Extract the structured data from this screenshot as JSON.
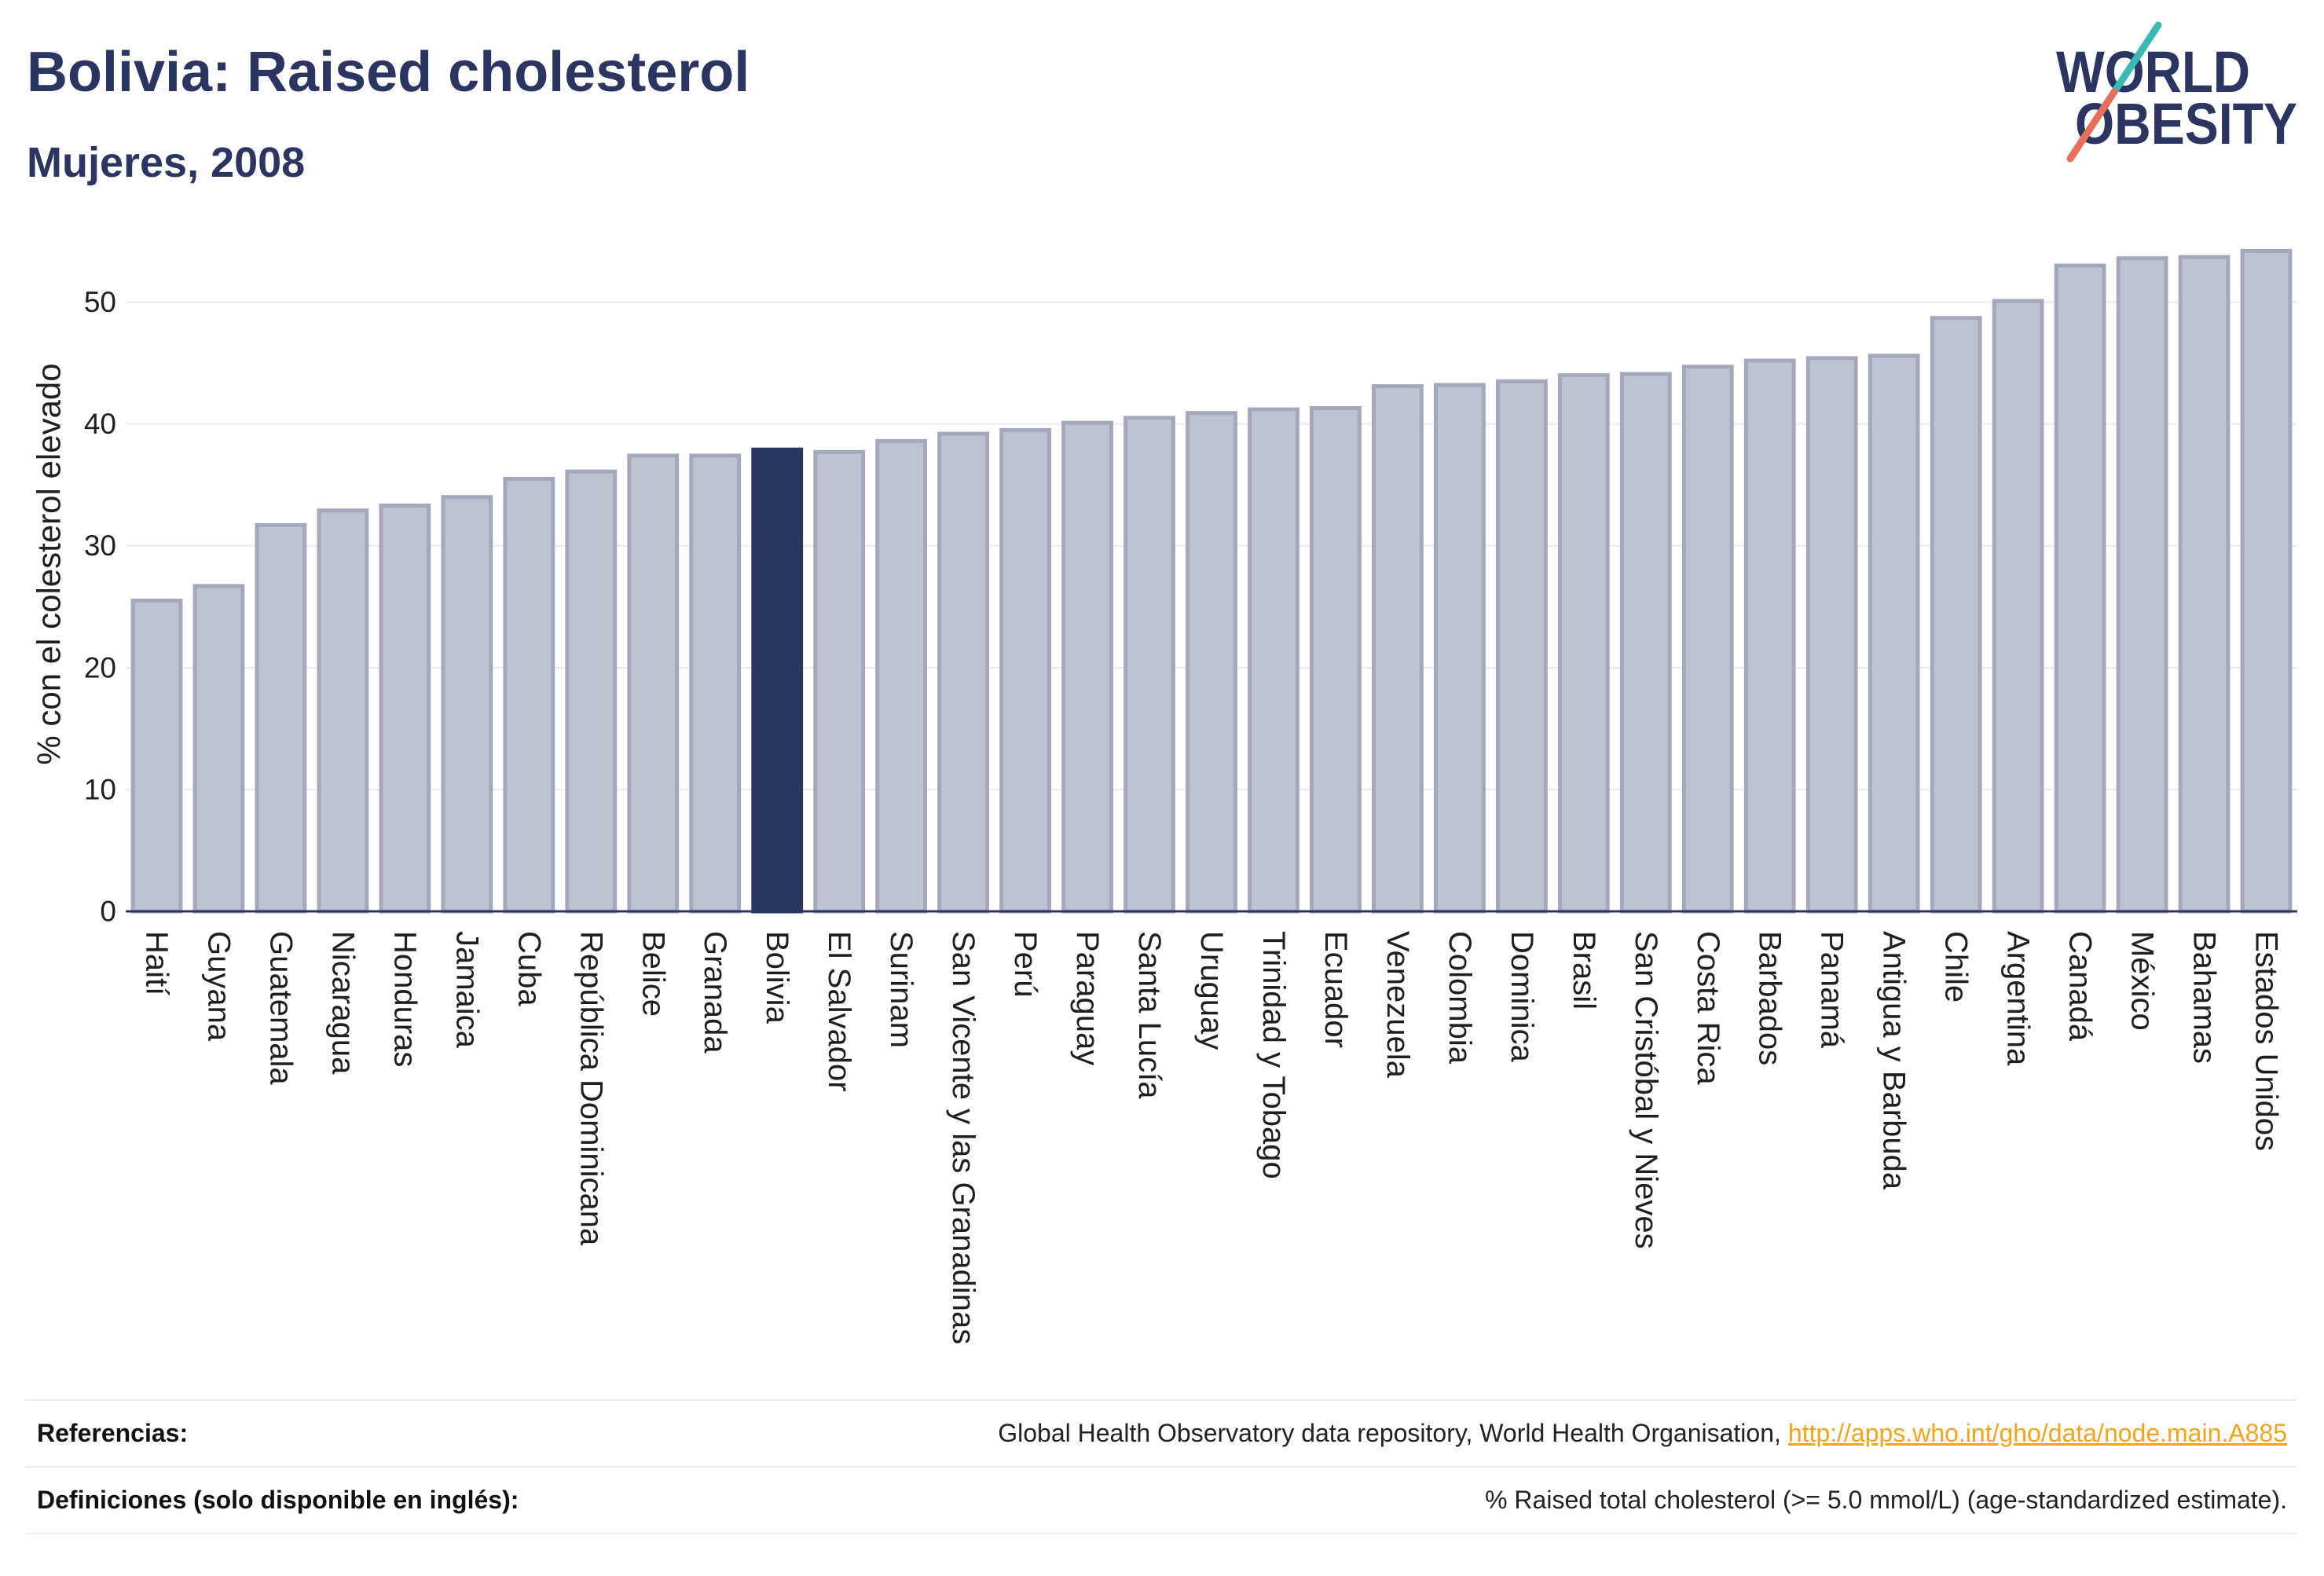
{
  "chart_data": {
    "type": "bar",
    "title": "Bolivia: Raised cholesterol",
    "subtitle": "Mujeres, 2008",
    "ylabel": "% con el colesterol elevado",
    "ylim": [
      0,
      57
    ],
    "yticks": [
      0,
      10,
      20,
      30,
      40,
      50
    ],
    "grid": true,
    "highlight": "Bolivia",
    "categories": [
      "Haití",
      "Guyana",
      "Guatemala",
      "Nicaragua",
      "Honduras",
      "Jamaica",
      "Cuba",
      "República Dominicana",
      "Belice",
      "Granada",
      "Bolivia",
      "El Salvador",
      "Surinam",
      "San Vicente y las Granadinas",
      "Perú",
      "Paraguay",
      "Santa Lucía",
      "Uruguay",
      "Trinidad y Tobago",
      "Ecuador",
      "Venezuela",
      "Colombia",
      "Dominica",
      "Brasil",
      "San Cristóbal y Nieves",
      "Costa Rica",
      "Barbados",
      "Panamá",
      "Antigua y Barbuda",
      "Chile",
      "Argentina",
      "Canadá",
      "México",
      "Bahamas",
      "Estados Unidos"
    ],
    "values": [
      25.5,
      26.7,
      31.7,
      32.9,
      33.3,
      34.0,
      35.5,
      36.1,
      37.4,
      37.4,
      37.9,
      37.7,
      38.6,
      39.2,
      39.5,
      40.1,
      40.5,
      40.9,
      41.2,
      41.3,
      43.1,
      43.2,
      43.5,
      44.0,
      44.1,
      44.7,
      45.2,
      45.4,
      45.6,
      48.7,
      50.1,
      53.0,
      53.6,
      53.7,
      54.2
    ]
  },
  "logo": {
    "line1": "WORLD",
    "line2": "OBESITY"
  },
  "footer": {
    "references": {
      "label": "Referencias:",
      "text": "Global Health Observatory data repository, World Health Organisation,",
      "link": "http://apps.who.int/gho/data/node.main.A885"
    },
    "definitions": {
      "label": "Definiciones (solo disponible en inglés):",
      "text": "% Raised total cholesterol (>= 5.0 mmol/L) (age-standardized estimate)."
    }
  },
  "colors": {
    "title": "#2b3561",
    "bar_fill": "#bfc2d0",
    "bar_border": "#a3a8bc",
    "highlight_bar": "#2b3561",
    "zero_line": "#2b3561",
    "link": "#f2a51c",
    "logo_teal": "#3bb9b5",
    "logo_coral": "#e8705b"
  }
}
